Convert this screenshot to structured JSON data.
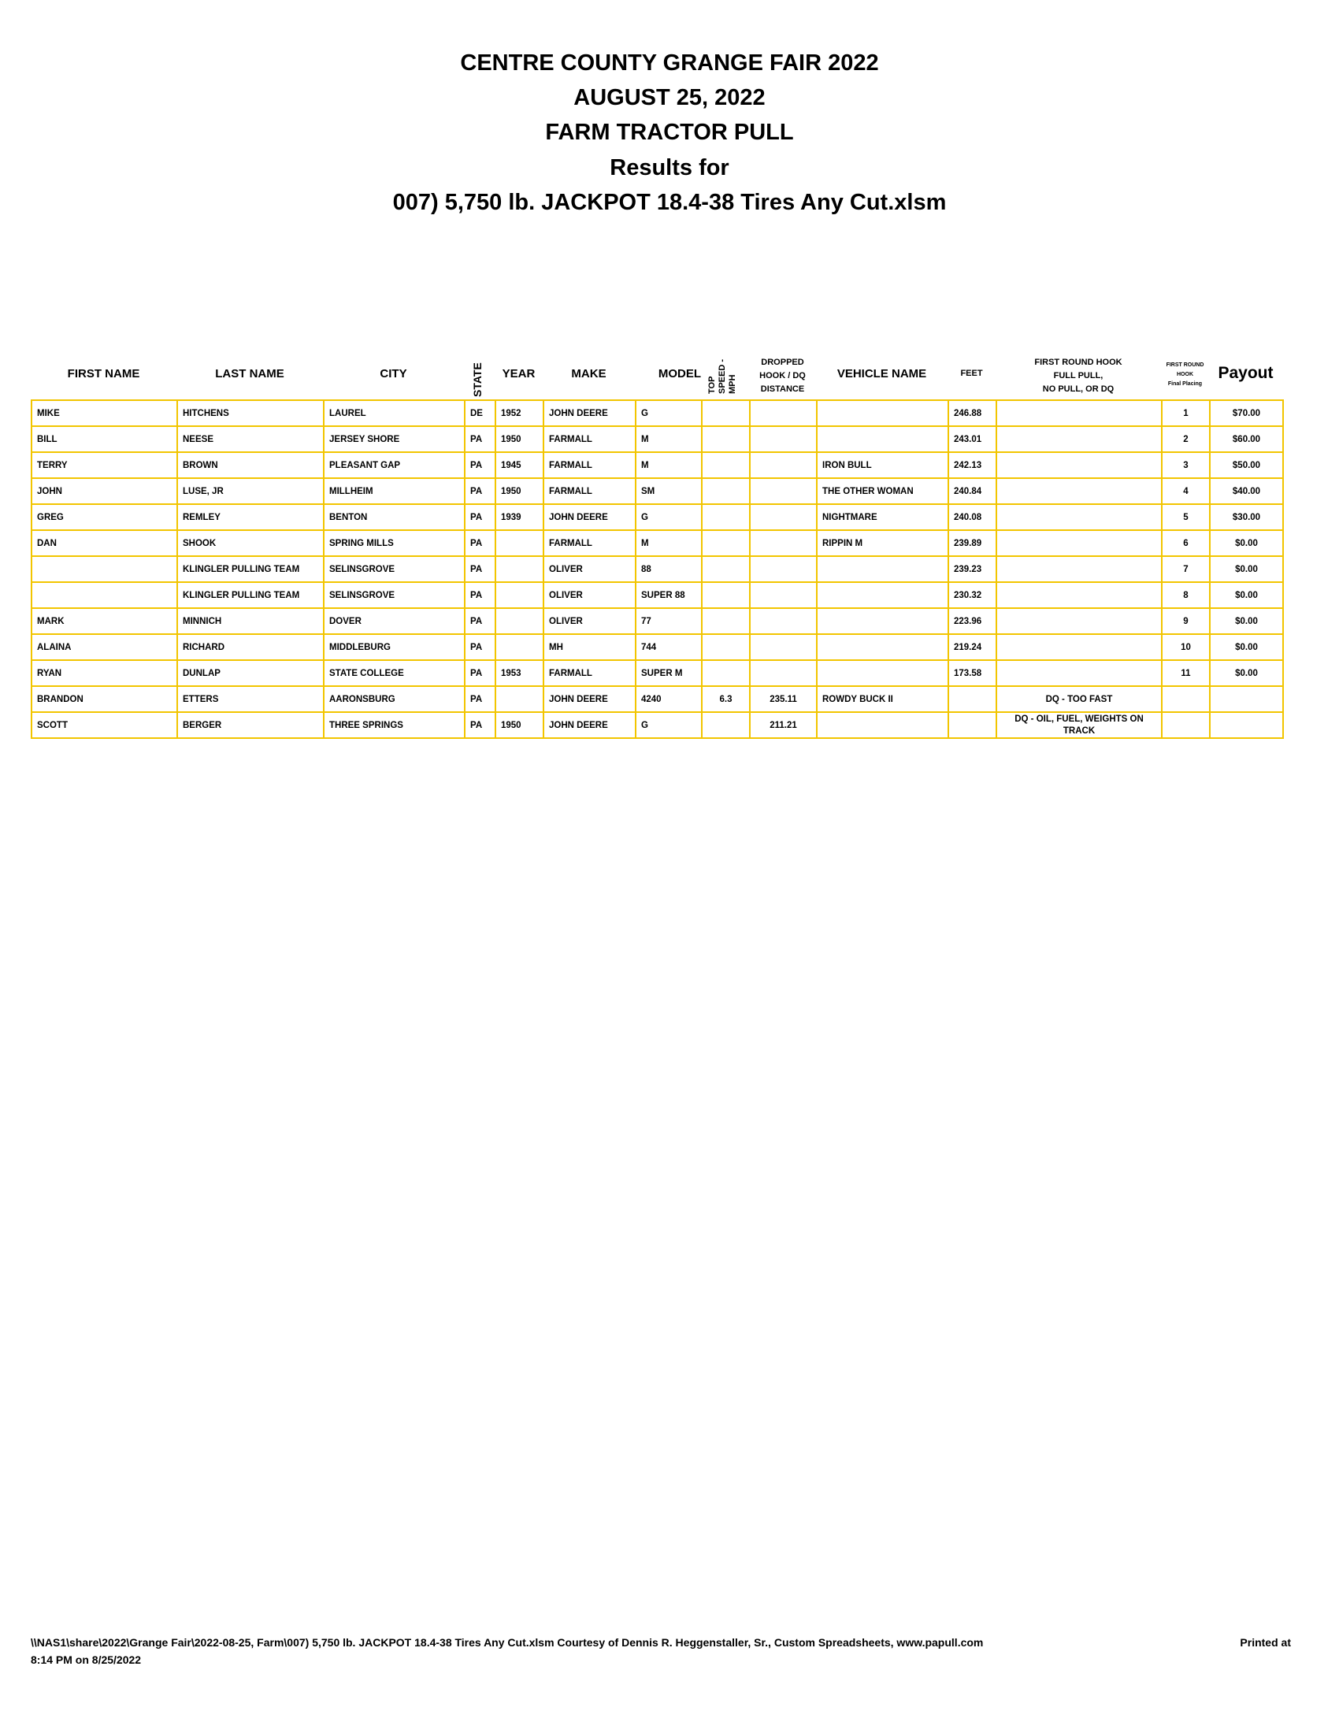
{
  "title_lines": [
    "CENTRE COUNTY GRANGE FAIR 2022",
    "AUGUST 25, 2022",
    "FARM TRACTOR PULL",
    "Results for",
    "007) 5,750 lb. JACKPOT 18.4-38 Tires Any Cut.xlsm"
  ],
  "columns": {
    "first_name": "FIRST NAME",
    "last_name": "LAST NAME",
    "city": "CITY",
    "state": "STATE",
    "year": "YEAR",
    "make": "MAKE",
    "model": "MODEL",
    "top_speed": "TOP SPEED - MPH",
    "dropped": [
      "DROPPED",
      "HOOK / DQ",
      "DISTANCE"
    ],
    "vehicle": "VEHICLE NAME",
    "feet": "FEET",
    "first_round": [
      "FIRST ROUND HOOK",
      "FULL PULL,",
      "NO PULL, OR DQ"
    ],
    "placing": [
      "FIRST ROUND",
      "HOOK",
      "Final Placing"
    ],
    "payout": "Payout"
  },
  "rows": [
    [
      "MIKE",
      "HITCHENS",
      "LAUREL",
      "DE",
      "1952",
      "JOHN DEERE",
      "G",
      "",
      "",
      "",
      "246.88",
      "",
      "1",
      "$70.00"
    ],
    [
      "BILL",
      "NEESE",
      "JERSEY SHORE",
      "PA",
      "1950",
      "FARMALL",
      "M",
      "",
      "",
      "",
      "243.01",
      "",
      "2",
      "$60.00"
    ],
    [
      "TERRY",
      "BROWN",
      "PLEASANT GAP",
      "PA",
      "1945",
      "FARMALL",
      "M",
      "",
      "",
      "IRON BULL",
      "242.13",
      "",
      "3",
      "$50.00"
    ],
    [
      "JOHN",
      "LUSE, JR",
      "MILLHEIM",
      "PA",
      "1950",
      "FARMALL",
      "SM",
      "",
      "",
      "THE OTHER WOMAN",
      "240.84",
      "",
      "4",
      "$40.00"
    ],
    [
      "GREG",
      "REMLEY",
      "BENTON",
      "PA",
      "1939",
      "JOHN DEERE",
      "G",
      "",
      "",
      "NIGHTMARE",
      "240.08",
      "",
      "5",
      "$30.00"
    ],
    [
      "DAN",
      "SHOOK",
      "SPRING MILLS",
      "PA",
      "",
      "FARMALL",
      "M",
      "",
      "",
      "RIPPIN M",
      "239.89",
      "",
      "6",
      "$0.00"
    ],
    [
      "",
      "KLINGLER PULLING TEAM",
      "SELINSGROVE",
      "PA",
      "",
      "OLIVER",
      "88",
      "",
      "",
      "",
      "239.23",
      "",
      "7",
      "$0.00"
    ],
    [
      "",
      "KLINGLER PULLING TEAM",
      "SELINSGROVE",
      "PA",
      "",
      "OLIVER",
      "SUPER 88",
      "",
      "",
      "",
      "230.32",
      "",
      "8",
      "$0.00"
    ],
    [
      "MARK",
      "MINNICH",
      "DOVER",
      "PA",
      "",
      "OLIVER",
      "77",
      "",
      "",
      "",
      "223.96",
      "",
      "9",
      "$0.00"
    ],
    [
      "ALAINA",
      "RICHARD",
      "MIDDLEBURG",
      "PA",
      "",
      "MH",
      "744",
      "",
      "",
      "",
      "219.24",
      "",
      "10",
      "$0.00"
    ],
    [
      "RYAN",
      "DUNLAP",
      "STATE COLLEGE",
      "PA",
      "1953",
      "FARMALL",
      "SUPER M",
      "",
      "",
      "",
      "173.58",
      "",
      "11",
      "$0.00"
    ],
    [
      "BRANDON",
      "ETTERS",
      "AARONSBURG",
      "PA",
      "",
      "JOHN DEERE",
      "4240",
      "6.3",
      "235.11",
      "ROWDY BUCK II",
      "",
      "DQ - TOO FAST",
      "",
      ""
    ],
    [
      "SCOTT",
      "BERGER",
      "THREE SPRINGS",
      "PA",
      "1950",
      "JOHN DEERE",
      "G",
      "",
      "211.21",
      "",
      "",
      "DQ - OIL, FUEL, WEIGHTS ON TRACK",
      "",
      ""
    ]
  ],
  "footer": {
    "path": "\\\\NAS1\\share\\2022\\Grange Fair\\2022-08-25, Farm\\007) 5,750 lb. JACKPOT 18.4-38 Tires Any Cut.xlsm  Courtesy of Dennis R. Heggenstaller, Sr., Custom Spreadsheets, www.papull.com",
    "printed_label": "Printed at",
    "printed_time": "8:14 PM on 8/25/2022"
  },
  "colors": {
    "grid": "#F2C500"
  }
}
